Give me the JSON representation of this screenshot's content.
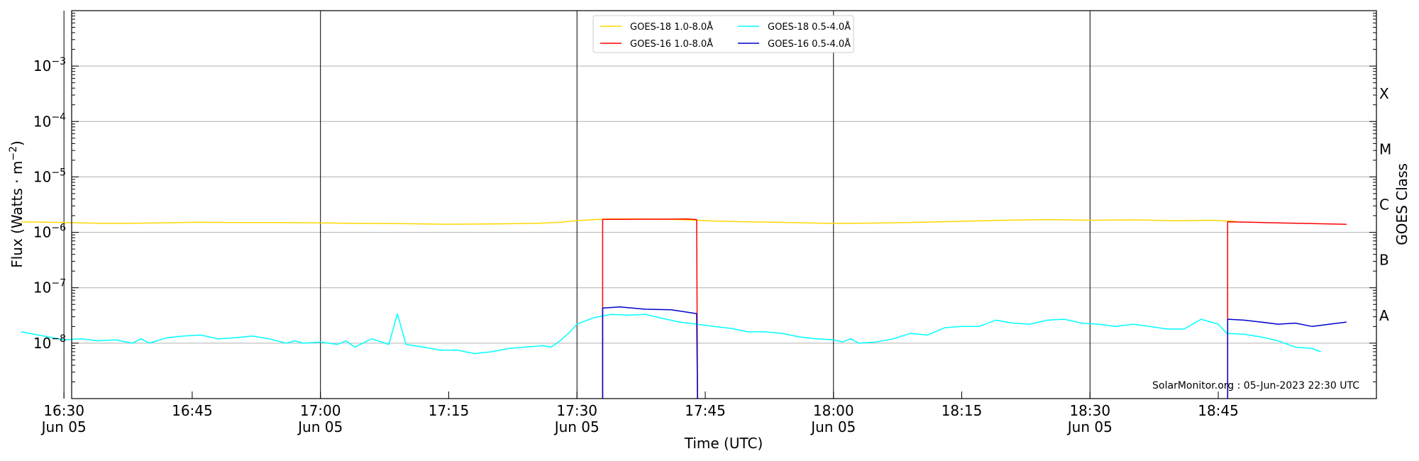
{
  "chart_data": {
    "type": "line",
    "ylabel_main": "Flux (Watts · m",
    "ylabel_exp": "−2",
    "ylabel_close": ")",
    "xlabel": "Time (UTC)",
    "right_axis_label": "GOES Class",
    "watermark": "SolarMonitor.org : 05-Jun-2023 22:30 UTC",
    "yscale": "log",
    "ylim_log10": [
      -9,
      -2
    ],
    "xlim_minutes": [
      990.9,
      1143.5
    ],
    "x_unit": "minutes since 00:00 UTC",
    "grid": "horizontal",
    "legend_position": "top-center",
    "y_ticks": [
      {
        "mantissa": "10",
        "exp": "−8",
        "log": -8
      },
      {
        "mantissa": "10",
        "exp": "−7",
        "log": -7
      },
      {
        "mantissa": "10",
        "exp": "−6",
        "log": -6
      },
      {
        "mantissa": "10",
        "exp": "−5",
        "log": -5
      },
      {
        "mantissa": "10",
        "exp": "−4",
        "log": -4
      },
      {
        "mantissa": "10",
        "exp": "−3",
        "log": -3
      }
    ],
    "x_ticks": [
      {
        "t": 990,
        "label": "16:30",
        "sub": "Jun 05",
        "vline": true
      },
      {
        "t": 1005,
        "label": "16:45",
        "sub": "",
        "vline": false
      },
      {
        "t": 1020,
        "label": "17:00",
        "sub": "Jun 05",
        "vline": true
      },
      {
        "t": 1035,
        "label": "17:15",
        "sub": "",
        "vline": false
      },
      {
        "t": 1050,
        "label": "17:30",
        "sub": "Jun 05",
        "vline": true
      },
      {
        "t": 1065,
        "label": "17:45",
        "sub": "",
        "vline": false
      },
      {
        "t": 1080,
        "label": "18:00",
        "sub": "Jun 05",
        "vline": true
      },
      {
        "t": 1095,
        "label": "18:15",
        "sub": "",
        "vline": false
      },
      {
        "t": 1110,
        "label": "18:30",
        "sub": "Jun 05",
        "vline": true
      },
      {
        "t": 1125,
        "label": "18:45",
        "sub": "",
        "vline": false
      }
    ],
    "goes_classes": [
      {
        "label": "A",
        "log": -7.5
      },
      {
        "label": "B",
        "log": -6.5
      },
      {
        "label": "C",
        "log": -5.5
      },
      {
        "label": "M",
        "log": -4.5
      },
      {
        "label": "X",
        "log": -3.5
      }
    ],
    "series": [
      {
        "name": "GOES-18 1.0-8.0Å",
        "color": "#ffd700",
        "points": [
          [
            985,
            1.55e-06
          ],
          [
            990,
            1.5e-06
          ],
          [
            995,
            1.45e-06
          ],
          [
            1000,
            1.47e-06
          ],
          [
            1005,
            1.52e-06
          ],
          [
            1010,
            1.5e-06
          ],
          [
            1015,
            1.5e-06
          ],
          [
            1020,
            1.48e-06
          ],
          [
            1025,
            1.45e-06
          ],
          [
            1030,
            1.43e-06
          ],
          [
            1035,
            1.4e-06
          ],
          [
            1040,
            1.42e-06
          ],
          [
            1045,
            1.45e-06
          ],
          [
            1048,
            1.52e-06
          ],
          [
            1050,
            1.62e-06
          ],
          [
            1052,
            1.7e-06
          ],
          [
            1054,
            1.75e-06
          ],
          [
            1058,
            1.75e-06
          ],
          [
            1062,
            1.7e-06
          ],
          [
            1066,
            1.6e-06
          ],
          [
            1070,
            1.55e-06
          ],
          [
            1075,
            1.5e-06
          ],
          [
            1080,
            1.45e-06
          ],
          [
            1085,
            1.47e-06
          ],
          [
            1090,
            1.52e-06
          ],
          [
            1095,
            1.58e-06
          ],
          [
            1100,
            1.65e-06
          ],
          [
            1105,
            1.7e-06
          ],
          [
            1110,
            1.65e-06
          ],
          [
            1115,
            1.68e-06
          ],
          [
            1120,
            1.62e-06
          ],
          [
            1124,
            1.65e-06
          ],
          [
            1127,
            1.58e-06
          ]
        ]
      },
      {
        "name": "GOES-16 1.0-8.0Å",
        "color": "#ff0000",
        "points": [
          [
            1053,
            1e-09
          ],
          [
            1053,
            1.72e-06
          ],
          [
            1056,
            1.72e-06
          ],
          [
            1060,
            1.73e-06
          ],
          [
            1063,
            1.74e-06
          ],
          [
            1064,
            1.7e-06
          ],
          [
            1064.1,
            1e-09
          ],
          null,
          [
            1126.1,
            1e-09
          ],
          [
            1126.1,
            1.55e-06
          ],
          [
            1129,
            1.52e-06
          ],
          [
            1132,
            1.48e-06
          ],
          [
            1135,
            1.45e-06
          ],
          [
            1138,
            1.42e-06
          ],
          [
            1140,
            1.4e-06
          ]
        ]
      },
      {
        "name": "GOES-18 0.5-4.0Å",
        "color": "#00ffff",
        "points": [
          [
            985,
            1.6e-08
          ],
          [
            987,
            1.4e-08
          ],
          [
            990,
            1.15e-08
          ],
          [
            992,
            1.2e-08
          ],
          [
            994,
            1.1e-08
          ],
          [
            996,
            1.15e-08
          ],
          [
            998,
            1e-08
          ],
          [
            999,
            1.2e-08
          ],
          [
            1000,
            1e-08
          ],
          [
            1002,
            1.25e-08
          ],
          [
            1004,
            1.35e-08
          ],
          [
            1006,
            1.4e-08
          ],
          [
            1008,
            1.2e-08
          ],
          [
            1010,
            1.25e-08
          ],
          [
            1012,
            1.35e-08
          ],
          [
            1014,
            1.2e-08
          ],
          [
            1016,
            1e-08
          ],
          [
            1017,
            1.1e-08
          ],
          [
            1018,
            1e-08
          ],
          [
            1020,
            1.05e-08
          ],
          [
            1022,
            9.5e-09
          ],
          [
            1023,
            1.1e-08
          ],
          [
            1024,
            8.5e-09
          ],
          [
            1026,
            1.2e-08
          ],
          [
            1028,
            9.5e-09
          ],
          [
            1029,
            3.4e-08
          ],
          [
            1030,
            9.5e-09
          ],
          [
            1032,
            8.5e-09
          ],
          [
            1034,
            7.5e-09
          ],
          [
            1036,
            7.5e-09
          ],
          [
            1038,
            6.5e-09
          ],
          [
            1040,
            7e-09
          ],
          [
            1042,
            8e-09
          ],
          [
            1044,
            8.5e-09
          ],
          [
            1046,
            9e-09
          ],
          [
            1047,
            8.5e-09
          ],
          [
            1048,
            1.1e-08
          ],
          [
            1049,
            1.5e-08
          ],
          [
            1050,
            2.2e-08
          ],
          [
            1052,
            2.9e-08
          ],
          [
            1054,
            3.3e-08
          ],
          [
            1056,
            3.2e-08
          ],
          [
            1058,
            3.3e-08
          ],
          [
            1060,
            2.8e-08
          ],
          [
            1062,
            2.4e-08
          ],
          [
            1064,
            2.2e-08
          ],
          [
            1066,
            2e-08
          ],
          [
            1068,
            1.85e-08
          ],
          [
            1070,
            1.6e-08
          ],
          [
            1072,
            1.6e-08
          ],
          [
            1074,
            1.5e-08
          ],
          [
            1076,
            1.3e-08
          ],
          [
            1078,
            1.2e-08
          ],
          [
            1080,
            1.15e-08
          ],
          [
            1081,
            1.05e-08
          ],
          [
            1082,
            1.2e-08
          ],
          [
            1083,
            1e-08
          ],
          [
            1085,
            1.05e-08
          ],
          [
            1087,
            1.2e-08
          ],
          [
            1089,
            1.5e-08
          ],
          [
            1091,
            1.4e-08
          ],
          [
            1093,
            1.9e-08
          ],
          [
            1095,
            2e-08
          ],
          [
            1097,
            2e-08
          ],
          [
            1099,
            2.6e-08
          ],
          [
            1101,
            2.3e-08
          ],
          [
            1103,
            2.2e-08
          ],
          [
            1105,
            2.6e-08
          ],
          [
            1107,
            2.7e-08
          ],
          [
            1109,
            2.3e-08
          ],
          [
            1111,
            2.2e-08
          ],
          [
            1113,
            2e-08
          ],
          [
            1115,
            2.2e-08
          ],
          [
            1117,
            2e-08
          ],
          [
            1119,
            1.8e-08
          ],
          [
            1121,
            1.8e-08
          ],
          [
            1123,
            2.7e-08
          ],
          [
            1125,
            2.2e-08
          ],
          [
            1126,
            1.5e-08
          ],
          [
            1128,
            1.45e-08
          ],
          [
            1130,
            1.3e-08
          ],
          [
            1132,
            1.1e-08
          ],
          [
            1134,
            8.5e-09
          ],
          [
            1136,
            8e-09
          ],
          [
            1137,
            7e-09
          ]
        ]
      },
      {
        "name": "GOES-16 0.5-4.0Å",
        "color": "#0000cd",
        "points": [
          [
            1053,
            1e-09
          ],
          [
            1053,
            4.3e-08
          ],
          [
            1055,
            4.5e-08
          ],
          [
            1058,
            4.1e-08
          ],
          [
            1061,
            4e-08
          ],
          [
            1063,
            3.6e-08
          ],
          [
            1064,
            3.4e-08
          ],
          [
            1064.1,
            1e-09
          ],
          null,
          [
            1126.1,
            1e-09
          ],
          [
            1126.1,
            2.7e-08
          ],
          [
            1128,
            2.6e-08
          ],
          [
            1130,
            2.4e-08
          ],
          [
            1132,
            2.2e-08
          ],
          [
            1134,
            2.3e-08
          ],
          [
            1136,
            2e-08
          ],
          [
            1138,
            2.2e-08
          ],
          [
            1140,
            2.4e-08
          ]
        ]
      }
    ],
    "legend": [
      {
        "label": "GOES-18 1.0-8.0Å",
        "color": "#ffd700"
      },
      {
        "label": "GOES-16 1.0-8.0Å",
        "color": "#ff0000"
      },
      {
        "label": "GOES-18 0.5-4.0Å",
        "color": "#00ffff"
      },
      {
        "label": "GOES-16 0.5-4.0Å",
        "color": "#0000cd"
      }
    ]
  }
}
